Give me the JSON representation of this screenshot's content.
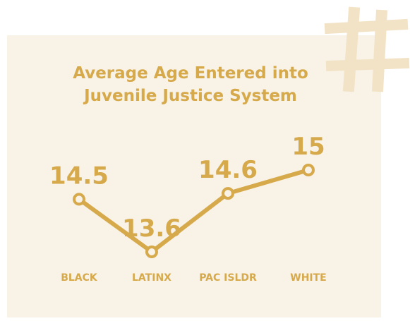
{
  "chart_data": {
    "type": "line",
    "title": "Average Age Entered into Juvenile Justice System",
    "categories": [
      "BLACK",
      "LATINX",
      "PAC ISLDR",
      "WHITE"
    ],
    "values": [
      14.5,
      13.6,
      14.6,
      15
    ],
    "color": "#d6a94b"
  }
}
